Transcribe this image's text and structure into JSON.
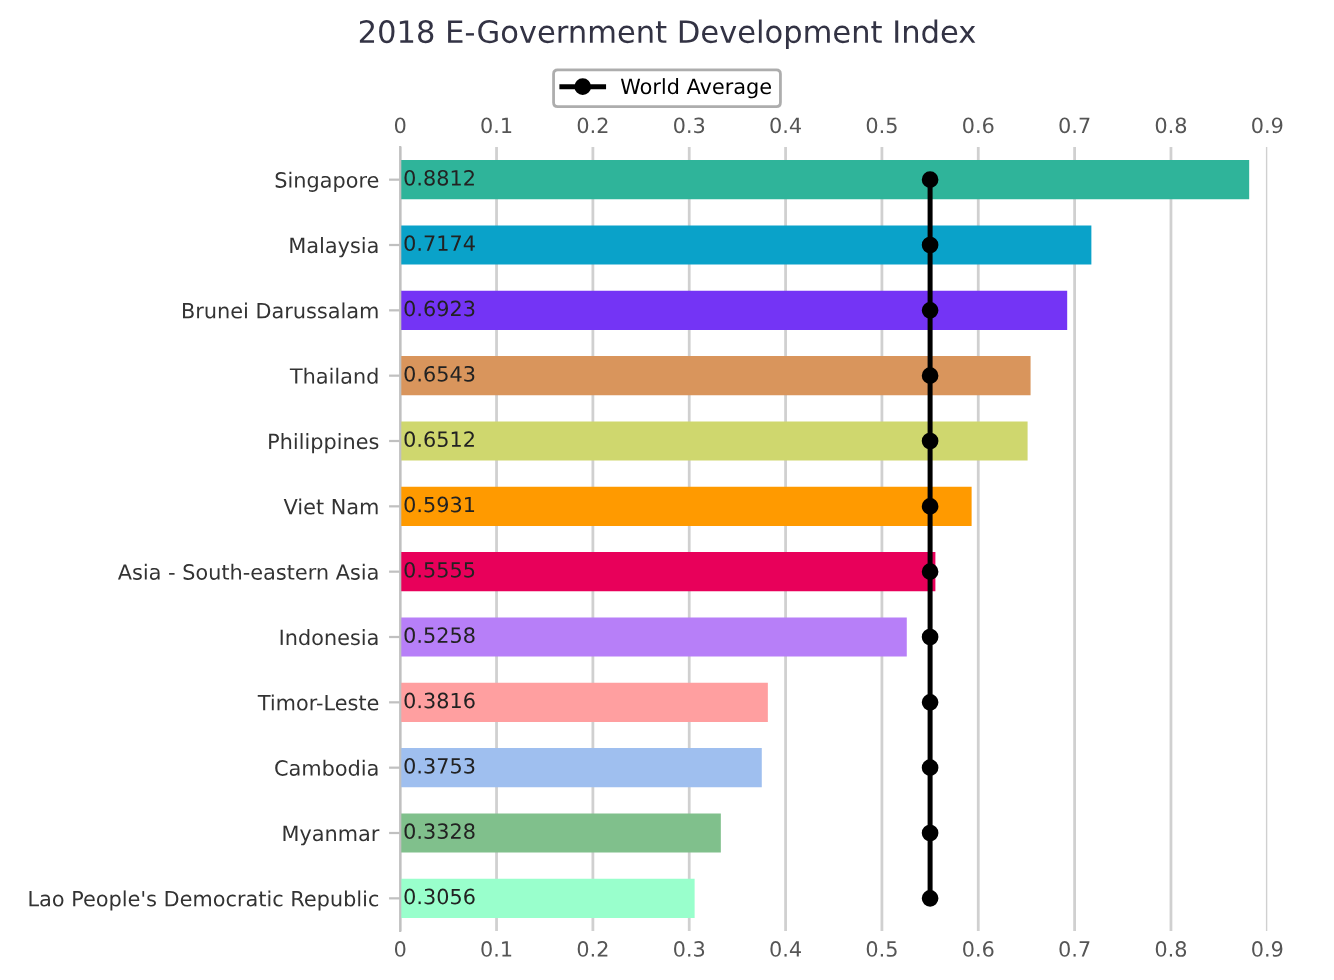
{
  "chart_data": {
    "type": "bar",
    "orientation": "horizontal",
    "title": "2018 E-Government Development Index",
    "categories": [
      "Singapore",
      "Malaysia",
      "Brunei Darussalam",
      "Thailand",
      "Philippines",
      "Viet Nam",
      "Asia - South-eastern Asia",
      "Indonesia",
      "Timor-Leste",
      "Cambodia",
      "Myanmar",
      "Lao People's Democratic Republic"
    ],
    "series": [
      {
        "colors": [
          "#2fb49a",
          "#0aa2c9",
          "#7434f5",
          "#d9955c",
          "#cfd76e",
          "#ff9a00",
          "#e8005a",
          "#b77ff8",
          "#ff9fa0",
          "#9fbfef",
          "#80c08c",
          "#99ffcc"
        ],
        "values": [
          0.8812,
          0.7174,
          0.6923,
          0.6543,
          0.6512,
          0.5931,
          0.5555,
          0.5258,
          0.3816,
          0.3753,
          0.3328,
          0.3056
        ],
        "value_labels": [
          "0.8812",
          "0.7174",
          "0.6923",
          "0.6543",
          "0.6512",
          "0.5931",
          "0.5555",
          "0.5258",
          "0.3816",
          "0.3753",
          "0.3328",
          "0.3056"
        ]
      },
      {
        "type": "line",
        "name": "World Average",
        "color": "#000000",
        "marker": "circle",
        "values": [
          0.55,
          0.55,
          0.55,
          0.55,
          0.55,
          0.55,
          0.55,
          0.55,
          0.55,
          0.55,
          0.55,
          0.55
        ]
      }
    ],
    "xlim": [
      0,
      0.9
    ],
    "xticks": [
      0,
      0.1,
      0.2,
      0.3,
      0.4,
      0.5,
      0.6,
      0.7,
      0.8,
      0.9
    ],
    "x2lim": [
      0,
      0.9
    ],
    "x2ticks": [
      0,
      0.1,
      0.2,
      0.3,
      0.4,
      0.5,
      0.6,
      0.7,
      0.8,
      0.9
    ],
    "grid": "x",
    "legend": "top"
  }
}
